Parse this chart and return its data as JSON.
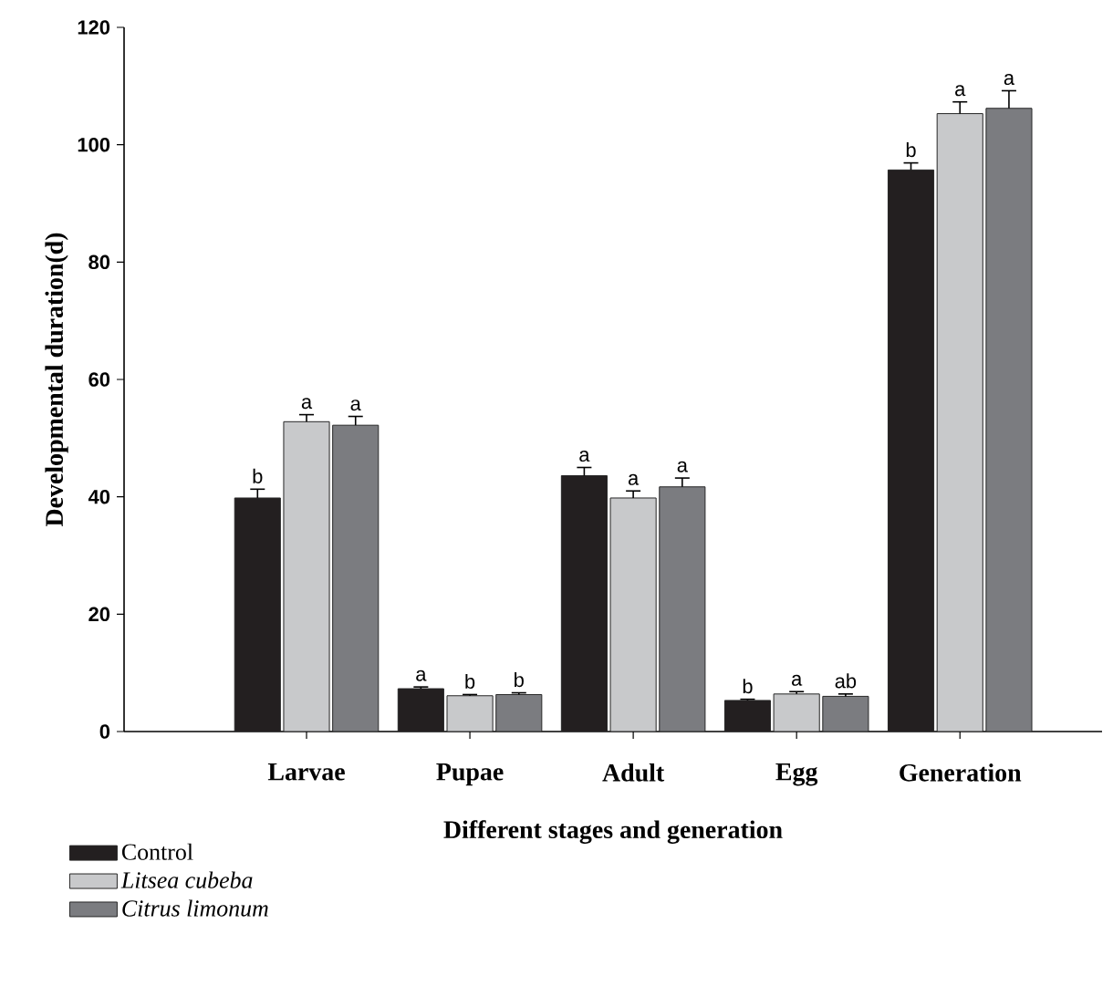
{
  "chart_data": {
    "type": "bar",
    "xlabel": "Different stages and generation",
    "ylabel": "Developmental duration(d)",
    "categories": [
      "Larvae",
      "Pupae",
      "Adult",
      "Egg",
      "Generation"
    ],
    "series": [
      {
        "name": "Control",
        "color": "#231f20",
        "values": [
          39.8,
          7.3,
          43.6,
          5.3,
          95.7
        ],
        "errors": [
          1.5,
          0.3,
          1.4,
          0.2,
          1.2
        ],
        "value_labels": [
          "b",
          "a",
          "a",
          "b",
          "b"
        ]
      },
      {
        "name": "Litsea cubeba",
        "color": "#c8c9cb",
        "values": [
          52.8,
          6.1,
          39.8,
          6.4,
          105.3
        ],
        "errors": [
          1.2,
          0.2,
          1.2,
          0.4,
          2.0
        ],
        "value_labels": [
          "a",
          "b",
          "a",
          "a",
          "a"
        ]
      },
      {
        "name": "Citrus limonum",
        "color": "#7b7c80",
        "values": [
          52.2,
          6.3,
          41.7,
          6.0,
          106.2
        ],
        "errors": [
          1.5,
          0.3,
          1.5,
          0.4,
          3.0
        ],
        "value_labels": [
          "a",
          "b",
          "a",
          "ab",
          "a"
        ]
      }
    ],
    "ylim": [
      0,
      120
    ],
    "yticks": [
      0,
      20,
      40,
      60,
      80,
      100,
      120
    ],
    "grid": false,
    "legend": "bottom left"
  }
}
